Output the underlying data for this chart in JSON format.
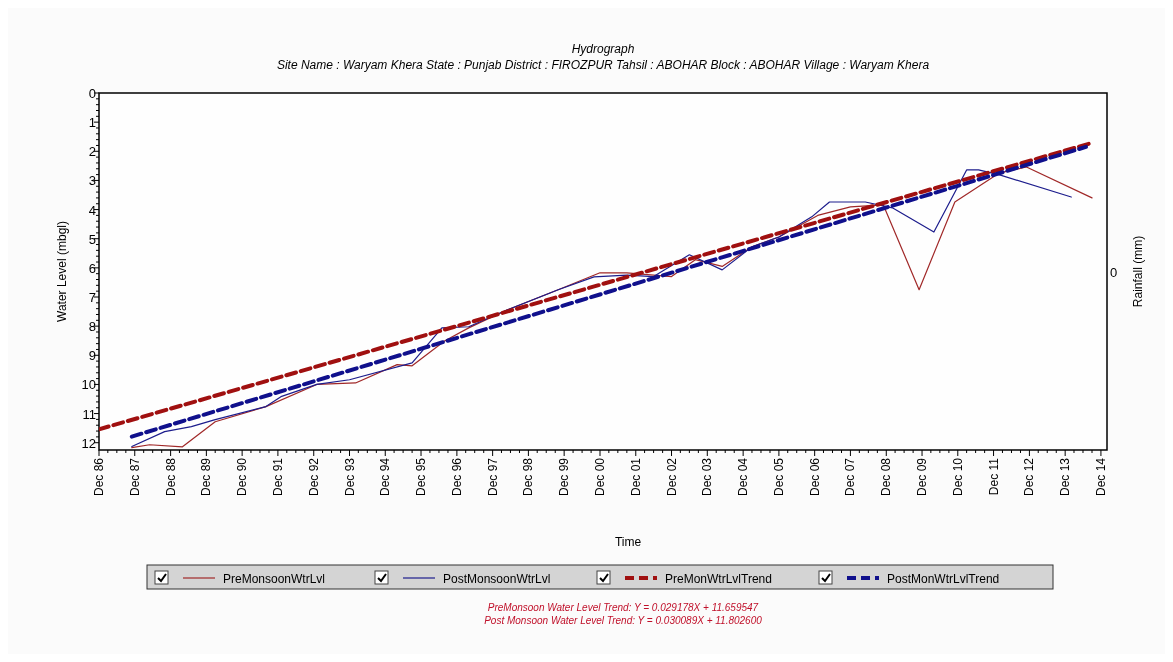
{
  "chart_data": {
    "type": "line",
    "title": "Hydrograph",
    "subtitle": "Site Name : Waryam Khera  State : Punjab District : FIROZPUR  Tahsil : ABOHAR  Block : ABOHAR Village : Waryam Khera",
    "xlabel": "Time",
    "ylabel": "Water Level (mbgl)",
    "y2label": "Rainfall (mm)",
    "xlim": [
      "1986-12",
      "2015-02"
    ],
    "ylim": [
      12.25,
      0
    ],
    "xticks": [
      {
        "value": "1986-12",
        "label": "Dec 86"
      },
      {
        "value": "1987-12",
        "label": "Dec 87"
      },
      {
        "value": "1988-12",
        "label": "Dec 88"
      },
      {
        "value": "1989-12",
        "label": "Dec 89"
      },
      {
        "value": "1990-12",
        "label": "Dec 90"
      },
      {
        "value": "1991-12",
        "label": "Dec 91"
      },
      {
        "value": "1992-12",
        "label": "Dec 92"
      },
      {
        "value": "1993-12",
        "label": "Dec 93"
      },
      {
        "value": "1994-12",
        "label": "Dec 94"
      },
      {
        "value": "1995-12",
        "label": "Dec 95"
      },
      {
        "value": "1996-12",
        "label": "Dec 96"
      },
      {
        "value": "1997-12",
        "label": "Dec 97"
      },
      {
        "value": "1998-12",
        "label": "Dec 98"
      },
      {
        "value": "1999-12",
        "label": "Dec 99"
      },
      {
        "value": "2000-12",
        "label": "Dec 00"
      },
      {
        "value": "2001-12",
        "label": "Dec 01"
      },
      {
        "value": "2002-12",
        "label": "Dec 02"
      },
      {
        "value": "2003-12",
        "label": "Dec 03"
      },
      {
        "value": "2004-12",
        "label": "Dec 04"
      },
      {
        "value": "2005-12",
        "label": "Dec 05"
      },
      {
        "value": "2006-12",
        "label": "Dec 06"
      },
      {
        "value": "2007-12",
        "label": "Dec 07"
      },
      {
        "value": "2008-12",
        "label": "Dec 08"
      },
      {
        "value": "2009-12",
        "label": "Dec 09"
      },
      {
        "value": "2010-12",
        "label": "Dec 10"
      },
      {
        "value": "2011-12",
        "label": "Dec 11"
      },
      {
        "value": "2012-12",
        "label": "Dec 12"
      },
      {
        "value": "2013-12",
        "label": "Dec 13"
      },
      {
        "value": "2014-12",
        "label": "Dec 14"
      }
    ],
    "yticks": [
      0,
      1,
      2,
      3,
      4,
      5,
      6,
      7,
      8,
      9,
      10,
      11,
      12
    ],
    "grid": false,
    "legend": "bottom",
    "marker": "none",
    "series": [
      {
        "name": "PreMonsoonWtrLvl",
        "color": "#a02828",
        "line_style": "solid",
        "x": [
          "1987-11",
          "1988-05",
          "1989-04",
          "1990-03",
          "1991-08",
          "1993-01",
          "1994-02",
          "1995-04",
          "1995-09",
          "1996-08",
          "1997-04",
          "1998-05",
          "1999-10",
          "2000-12",
          "2001-09",
          "2002-12",
          "2003-08",
          "2004-05",
          "2005-03",
          "2005-12",
          "2007-01",
          "2007-12",
          "2008-11",
          "2009-11",
          "2010-11",
          "2012-02",
          "2012-11",
          "2014-09"
        ],
        "values": [
          12.17,
          12.07,
          12.14,
          11.28,
          10.76,
          10.0,
          9.95,
          9.32,
          9.36,
          8.5,
          8.06,
          7.44,
          6.75,
          6.17,
          6.17,
          6.3,
          5.72,
          5.95,
          5.28,
          4.94,
          4.2,
          3.91,
          3.84,
          6.75,
          3.74,
          2.74,
          2.54,
          3.6
        ]
      },
      {
        "name": "PostMonsoonWtrLvl",
        "color": "#1c1c8c",
        "line_style": "solid",
        "x": [
          "1987-11",
          "1988-10",
          "1989-07",
          "1990-03",
          "1991-08",
          "1992-01",
          "1993-01",
          "1993-12",
          "1995-09",
          "1996-07",
          "1997-04",
          "1998-05",
          "1999-10",
          "2000-10",
          "2001-09",
          "2002-06",
          "2003-06",
          "2004-05",
          "2005-03",
          "2005-12",
          "2006-11",
          "2007-05",
          "2008-05",
          "2009-02",
          "2010-04",
          "2011-03",
          "2011-07",
          "2012-02",
          "2014-02"
        ],
        "values": [
          12.13,
          11.62,
          11.45,
          11.21,
          10.76,
          10.42,
          10.0,
          9.84,
          9.26,
          8.06,
          8.02,
          7.44,
          6.75,
          6.31,
          6.25,
          6.3,
          5.55,
          6.07,
          5.28,
          4.94,
          4.25,
          3.74,
          3.74,
          3.94,
          4.77,
          2.64,
          2.64,
          2.81,
          3.57
        ]
      },
      {
        "name": "PreMonWtrLvlTrend",
        "color": "#a01010",
        "line_style": "dashed",
        "x": [
          "1986-12",
          "2014-09"
        ],
        "values": [
          11.54,
          1.71
        ]
      },
      {
        "name": "PostMonWtrLvlTrend",
        "color": "#10108c",
        "line_style": "dashed",
        "x": [
          "1987-11",
          "2014-07"
        ],
        "values": [
          11.79,
          1.85
        ]
      }
    ],
    "annotations": [
      "0",
      "PreMonsoon Water Level Trend: Y = 0.029178X + 11.659547",
      "Post Monsoon Water Level Trend: Y = 0.030089X + 11.802600"
    ]
  }
}
